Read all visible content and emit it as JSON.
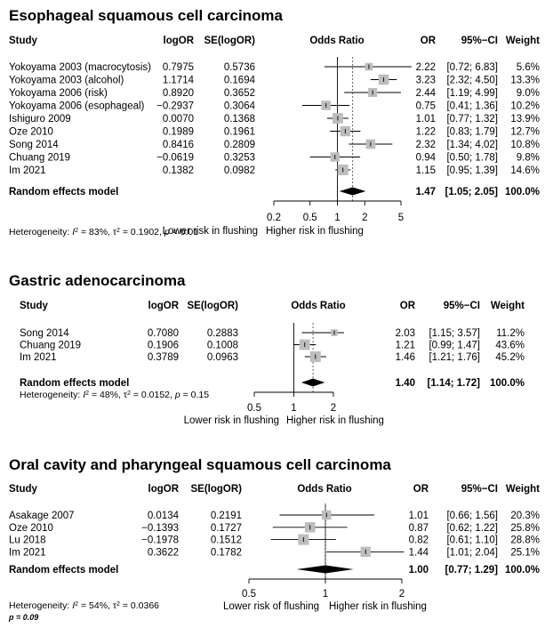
{
  "chart_data": [
    {
      "type": "forest",
      "title": "Esophageal squamous cell carcinoma",
      "headers": {
        "study": "Study",
        "logor": "logOR",
        "se": "SE(logOR)",
        "plot": "Odds Ratio",
        "or": "OR",
        "ci": "95%−CI",
        "weight": "Weight"
      },
      "studies": [
        {
          "study": "Yokoyama 2003 (macrocytosis)",
          "logor": "0.7975",
          "se": "0.5736",
          "or": 2.22,
          "lo": 0.72,
          "hi": 6.83,
          "or_text": "2.22",
          "ci_text": "[0.72; 6.83]",
          "weight": "5.6%",
          "w": 5.6
        },
        {
          "study": "Yokoyama 2003 (alcohol)",
          "logor": "1.1714",
          "se": "0.1694",
          "or": 3.23,
          "lo": 2.32,
          "hi": 4.5,
          "or_text": "3.23",
          "ci_text": "[2.32; 4.50]",
          "weight": "13.3%",
          "w": 13.3
        },
        {
          "study": "Yokoyama 2006 (risk)",
          "logor": "0.8920",
          "se": "0.3652",
          "or": 2.44,
          "lo": 1.19,
          "hi": 4.99,
          "or_text": "2.44",
          "ci_text": "[1.19; 4.99]",
          "weight": "9.0%",
          "w": 9.0
        },
        {
          "study": "Yokoyama 2006 (esophageal)",
          "logor": "−0.2937",
          "se": "0.3064",
          "or": 0.75,
          "lo": 0.41,
          "hi": 1.36,
          "or_text": "0.75",
          "ci_text": "[0.41; 1.36]",
          "weight": "10.2%",
          "w": 10.2
        },
        {
          "study": "Ishiguro 2009",
          "logor": "0.0070",
          "se": "0.1368",
          "or": 1.01,
          "lo": 0.77,
          "hi": 1.32,
          "or_text": "1.01",
          "ci_text": "[0.77; 1.32]",
          "weight": "13.9%",
          "w": 13.9
        },
        {
          "study": "Oze 2010",
          "logor": "0.1989",
          "se": "0.1961",
          "or": 1.22,
          "lo": 0.83,
          "hi": 1.79,
          "or_text": "1.22",
          "ci_text": "[0.83; 1.79]",
          "weight": "12.7%",
          "w": 12.7
        },
        {
          "study": "Song 2014",
          "logor": "0.8416",
          "se": "0.2809",
          "or": 2.32,
          "lo": 1.34,
          "hi": 4.02,
          "or_text": "2.32",
          "ci_text": "[1.34; 4.02]",
          "weight": "10.8%",
          "w": 10.8
        },
        {
          "study": "Chuang 2019",
          "logor": "−0.0619",
          "se": "0.3253",
          "or": 0.94,
          "lo": 0.5,
          "hi": 1.78,
          "or_text": "0.94",
          "ci_text": "[0.50; 1.78]",
          "weight": "9.8%",
          "w": 9.8
        },
        {
          "study": "Im 2021",
          "logor": "0.1382",
          "se": "0.0982",
          "or": 1.15,
          "lo": 0.95,
          "hi": 1.39,
          "or_text": "1.15",
          "ci_text": "[0.95; 1.39]",
          "weight": "14.6%",
          "w": 14.6
        }
      ],
      "pooled": {
        "label": "Random effects model",
        "or": 1.47,
        "lo": 1.05,
        "hi": 2.05,
        "or_text": "1.47",
        "ci_text": "[1.05; 2.05]",
        "weight": "100.0%"
      },
      "heterogeneity": {
        "prefix": "Heterogeneity: ",
        "i2_symbol": "I",
        "i2": " = 83%, ",
        "tau_symbol": "τ",
        "tau2": " = 0.1902, ",
        "p_symbol": "p",
        "p": " < 0.01"
      },
      "axis": {
        "ticks": [
          0.2,
          0.5,
          1,
          2,
          5
        ],
        "tick_labels": [
          "0.2",
          "0.5",
          "1",
          "2",
          "5"
        ],
        "xlim": [
          0.2,
          5
        ],
        "scale": "log"
      },
      "direction_labels": [
        "Lower risk in flushing",
        "Higher risk in flushing"
      ]
    },
    {
      "type": "forest",
      "title": "Gastric adenocarcinoma",
      "headers": {
        "study": "Study",
        "logor": "logOR",
        "se": "SE(logOR)",
        "plot": "Odds Ratio",
        "or": "OR",
        "ci": "95%−CI",
        "weight": "Weight"
      },
      "studies": [
        {
          "study": "Song 2014",
          "logor": "0.7080",
          "se": "0.2883",
          "or": 2.03,
          "lo": 1.15,
          "hi": 3.57,
          "or_text": "2.03",
          "ci_text": "[1.15; 3.57]",
          "weight": "11.2%",
          "w": 11.2
        },
        {
          "study": "Chuang 2019",
          "logor": "0.1906",
          "se": "0.1008",
          "or": 1.21,
          "lo": 0.99,
          "hi": 1.47,
          "or_text": "1.21",
          "ci_text": "[0.99; 1.47]",
          "weight": "43.6%",
          "w": 43.6
        },
        {
          "study": "Im 2021",
          "logor": "0.3789",
          "se": "0.0963",
          "or": 1.46,
          "lo": 1.21,
          "hi": 1.76,
          "or_text": "1.46",
          "ci_text": "[1.21; 1.76]",
          "weight": "45.2%",
          "w": 45.2
        }
      ],
      "pooled": {
        "label": "Random effects model",
        "or": 1.4,
        "lo": 1.14,
        "hi": 1.72,
        "or_text": "1.40",
        "ci_text": "[1.14; 1.72]",
        "weight": "100.0%"
      },
      "heterogeneity": {
        "prefix": "Heterogeneity: ",
        "i2_symbol": "I",
        "i2": " = 48%, ",
        "tau_symbol": "τ",
        "tau2": " = 0.0152, ",
        "p_symbol": "p",
        "p": " = 0.15"
      },
      "axis": {
        "ticks": [
          0.5,
          1,
          2
        ],
        "tick_labels": [
          "0.5",
          "1",
          "2"
        ],
        "xlim": [
          0.5,
          2
        ],
        "scale": "log"
      },
      "direction_labels": [
        "Lower risk in flushing",
        "Higher risk in flushing"
      ]
    },
    {
      "type": "forest",
      "title": "Oral cavity and pharyngeal squamous cell carcinoma",
      "headers": {
        "study": "Study",
        "logor": "logOR",
        "se": "SE(logOR)",
        "plot": "Odds Ratio",
        "or": "OR",
        "ci": "95%−CI",
        "weight": "Weight"
      },
      "studies": [
        {
          "study": "Asakage 2007",
          "logor": "0.0134",
          "se": "0.2191",
          "or": 1.01,
          "lo": 0.66,
          "hi": 1.56,
          "or_text": "1.01",
          "ci_text": "[0.66; 1.56]",
          "weight": "20.3%",
          "w": 20.3
        },
        {
          "study": "Oze 2010",
          "logor": "−0.1393",
          "se": "0.1727",
          "or": 0.87,
          "lo": 0.62,
          "hi": 1.22,
          "or_text": "0.87",
          "ci_text": "[0.62; 1.22]",
          "weight": "25.8%",
          "w": 25.8
        },
        {
          "study": "Lu 2018",
          "logor": "−0.1978",
          "se": "0.1512",
          "or": 0.82,
          "lo": 0.61,
          "hi": 1.1,
          "or_text": "0.82",
          "ci_text": "[0.61; 1.10]",
          "weight": "28.8%",
          "w": 28.8
        },
        {
          "study": "Im 2021",
          "logor": "0.3622",
          "se": "0.1782",
          "or": 1.44,
          "lo": 1.01,
          "hi": 2.04,
          "or_text": "1.44",
          "ci_text": "[1.01; 2.04]",
          "weight": "25.1%",
          "w": 25.1
        }
      ],
      "pooled": {
        "label": "Random effects model",
        "or": 1.0,
        "lo": 0.77,
        "hi": 1.29,
        "or_text": "1.00",
        "ci_text": "[0.77; 1.29]",
        "weight": "100.0%"
      },
      "heterogeneity": {
        "prefix": "Heterogeneity: ",
        "i2_symbol": "I",
        "i2": " = 54%, ",
        "tau_symbol": "τ",
        "tau2": " = 0.0366",
        "p_line": "p = 0.09"
      },
      "axis": {
        "ticks": [
          0.5,
          1,
          2
        ],
        "tick_labels": [
          "0.5",
          "1",
          "2"
        ],
        "xlim": [
          0.5,
          2
        ],
        "scale": "log"
      },
      "direction_labels": [
        "Lower risk of flushing",
        "Higher risk in flushing"
      ]
    }
  ]
}
